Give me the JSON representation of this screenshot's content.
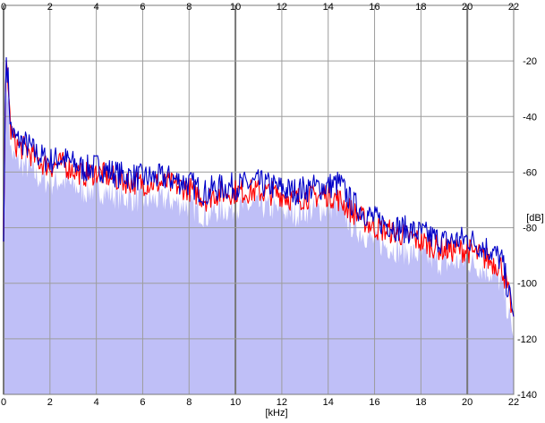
{
  "chart_data": {
    "type": "area",
    "xlabel": "[kHz]",
    "ylabel": "[dB]",
    "xlim": [
      0,
      22
    ],
    "ylim": [
      -140,
      0
    ],
    "x_ticks": [
      "0",
      "2",
      "4",
      "6",
      "8",
      "10",
      "12",
      "14",
      "16",
      "18",
      "20",
      "22"
    ],
    "y_ticks": [
      "-20",
      "-40",
      "-60",
      "-80",
      "-100",
      "-120",
      "-140"
    ],
    "grid": true,
    "colors": {
      "fill": "#bfbff7",
      "grid": "#9d9d9d",
      "major_grid": "#777777",
      "channel_red": "#ff0000",
      "channel_blue": "#0000c8"
    },
    "series": [
      {
        "color": "#ff0000",
        "x": [
          0,
          0.1,
          0.2,
          0.3,
          0.5,
          1.0,
          1.5,
          2.0,
          2.5,
          3.0,
          3.5,
          4.0,
          5.0,
          6.0,
          7.0,
          8.0,
          8.8,
          9.0,
          10.0,
          11.0,
          12.0,
          12.5,
          13.0,
          14.0,
          14.5,
          15.0,
          16.0,
          17.0,
          18.0,
          19.0,
          20.0,
          21.0,
          21.5,
          22.0
        ],
        "values": [
          -85,
          -18,
          -28,
          -45,
          -50,
          -52,
          -56,
          -58,
          -57,
          -59,
          -61,
          -60,
          -63,
          -64,
          -64,
          -66,
          -70,
          -68,
          -67,
          -67,
          -68,
          -70,
          -69,
          -68,
          -70,
          -74,
          -80,
          -82,
          -85,
          -88,
          -88,
          -92,
          -94,
          -112
        ]
      },
      {
        "color": "#0000c8",
        "x": [
          0,
          0.1,
          0.2,
          0.3,
          0.5,
          1.0,
          1.5,
          2.0,
          2.5,
          3.0,
          3.5,
          4.0,
          5.0,
          6.0,
          7.0,
          8.0,
          8.8,
          9.0,
          10.0,
          11.0,
          12.0,
          12.5,
          13.0,
          14.0,
          14.5,
          15.0,
          16.0,
          17.0,
          18.0,
          19.0,
          20.0,
          21.0,
          21.5,
          22.0
        ],
        "values": [
          -85,
          -17,
          -27,
          -44,
          -48,
          -50,
          -54,
          -56,
          -55,
          -57,
          -59,
          -58,
          -61,
          -62,
          -62,
          -64,
          -68,
          -66,
          -65,
          -64,
          -66,
          -67,
          -66,
          -65,
          -64,
          -71,
          -77,
          -80,
          -82,
          -85,
          -84,
          -88,
          -92,
          -112
        ]
      }
    ]
  }
}
